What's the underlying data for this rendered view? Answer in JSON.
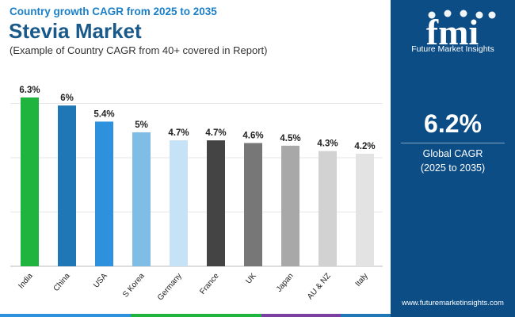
{
  "header": {
    "subtitle": "Country growth CAGR from 2025 to 2035",
    "title": "Stevia Market",
    "description": "(Example of Country CAGR from 40+ covered in Report)"
  },
  "chart_data": {
    "type": "bar",
    "categories": [
      "India",
      "China",
      "USA",
      "S Korea",
      "Germany",
      "France",
      "UK",
      "Japan",
      "AU & NZ",
      "Italy"
    ],
    "values": [
      6.3,
      6,
      5.4,
      5,
      4.7,
      4.7,
      4.6,
      4.5,
      4.3,
      4.2
    ],
    "labels": [
      "6.3%",
      "6%",
      "5.4%",
      "5%",
      "4.7%",
      "4.7%",
      "4.6%",
      "4.5%",
      "4.3%",
      "4.2%"
    ],
    "colors": [
      "#1fb43e",
      "#1f77b6",
      "#2e91dd",
      "#7fbde6",
      "#c5e2f6",
      "#444444",
      "#777777",
      "#a8a8a8",
      "#d2d2d2",
      "#e3e3e3"
    ],
    "ylim": [
      0,
      6.3
    ],
    "grid": true,
    "xlabel": "",
    "ylabel": ""
  },
  "panel": {
    "logo_text": "fmi",
    "brand": "Future Market Insights",
    "value": "6.2%",
    "label": "Global CAGR",
    "period": "(2025 to 2035)",
    "url": "www.futuremarketinsights.com"
  },
  "colors": {
    "panel_bg": "#0d4d86",
    "title": "#1a5a8a",
    "subtitle": "#1a7fc9",
    "footer": [
      "#2e91dd",
      "#1fb43e",
      "#7b3fa1",
      "#1f77b6"
    ]
  }
}
